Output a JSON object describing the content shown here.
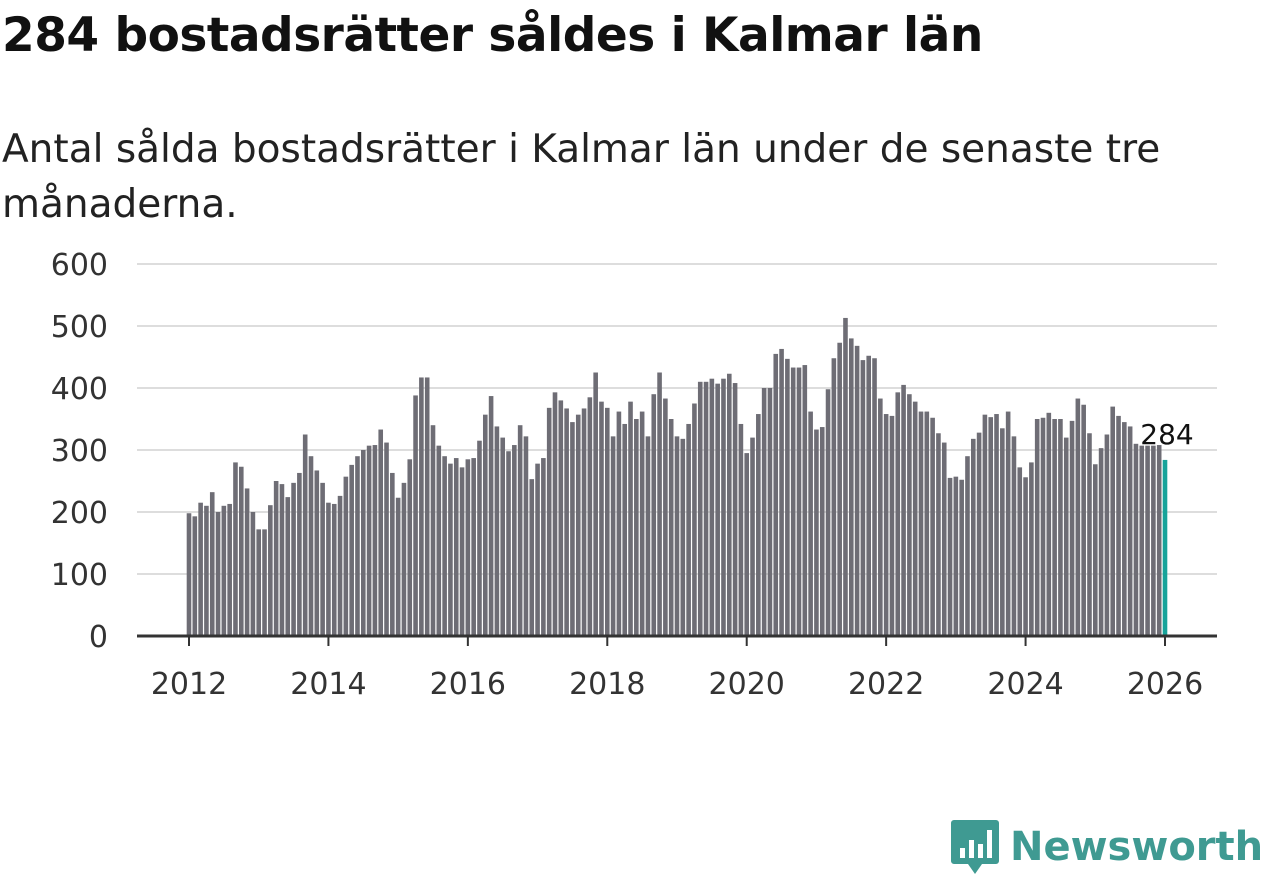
{
  "title": "284 bostadsrätter såldes i Kalmar län",
  "subtitle": "Antal sålda bostadsrätter i Kalmar län under de senaste tre månaderna.",
  "brand": {
    "name": "Newsworthy",
    "color": "#3f9a92"
  },
  "colors": {
    "bar": "#6e6d75",
    "highlight": "#17a39a",
    "grid": "#dddddd",
    "axis": "#333333"
  },
  "chart_data": {
    "type": "bar",
    "title": "284 bostadsrätter såldes i Kalmar län",
    "xlabel": "",
    "ylabel": "",
    "ylim": [
      0,
      600
    ],
    "yticks": [
      "0",
      "100",
      "200",
      "300",
      "400",
      "500",
      "600"
    ],
    "xticks": [
      "2012",
      "2014",
      "2016",
      "2018",
      "2020",
      "2022",
      "2024",
      "2026"
    ],
    "xrange": [
      "2012-01",
      "2026-01"
    ],
    "grid": true,
    "annotation": {
      "label": "284",
      "period": "2026-01",
      "value": 284
    },
    "values": [
      198,
      193,
      215,
      210,
      232,
      200,
      210,
      213,
      280,
      273,
      238,
      200,
      172,
      172,
      211,
      250,
      245,
      224,
      247,
      263,
      325,
      290,
      267,
      247,
      215,
      213,
      226,
      257,
      276,
      290,
      300,
      307,
      308,
      333,
      312,
      263,
      223,
      247,
      285,
      388,
      417,
      417,
      340,
      307,
      290,
      278,
      287,
      272,
      285,
      287,
      315,
      357,
      387,
      338,
      320,
      298,
      308,
      340,
      322,
      253,
      278,
      287,
      368,
      393,
      380,
      367,
      345,
      357,
      367,
      385,
      425,
      378,
      368,
      322,
      362,
      342,
      378,
      350,
      362,
      322,
      390,
      425,
      383,
      350,
      322,
      318,
      342,
      375,
      410,
      410,
      415,
      407,
      415,
      423,
      408,
      342,
      295,
      320,
      358,
      400,
      400,
      455,
      463,
      447,
      433,
      433,
      437,
      362,
      333,
      337,
      398,
      448,
      473,
      513,
      480,
      468,
      445,
      452,
      448,
      383,
      358,
      355,
      393,
      405,
      390,
      378,
      362,
      362,
      352,
      327,
      312,
      255,
      257,
      252,
      290,
      318,
      328,
      357,
      353,
      358,
      335,
      362,
      322,
      272,
      256,
      280,
      350,
      352,
      360,
      350,
      350,
      320,
      347,
      383,
      373,
      327,
      277,
      303,
      325,
      370,
      355,
      345,
      338,
      310,
      307,
      307,
      307,
      308,
      284
    ]
  }
}
